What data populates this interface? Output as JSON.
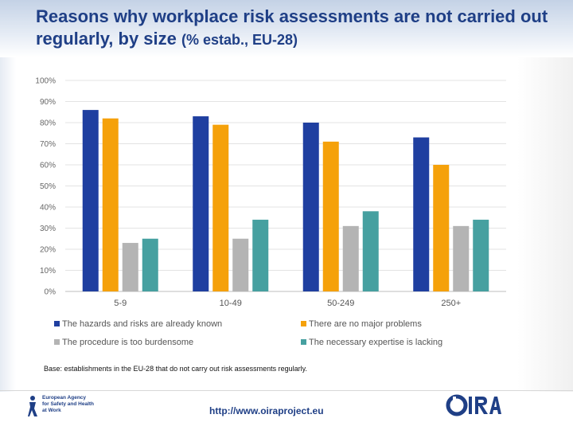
{
  "header": {
    "title_main": "Reasons why workplace risk assessments are not carried out regularly, by size ",
    "title_suffix": "(% estab., EU-28)"
  },
  "chart_data": {
    "type": "bar",
    "categories": [
      "5-9",
      "10-49",
      "50-249",
      "250+"
    ],
    "series": [
      {
        "name": "The hazards and risks are already known",
        "color": "#1f3fa0",
        "values": [
          86,
          83,
          80,
          73
        ]
      },
      {
        "name": "There are no major problems",
        "color": "#f5a10a",
        "values": [
          82,
          79,
          71,
          60
        ]
      },
      {
        "name": "The procedure is too burdensome",
        "color": "#b4b4b4",
        "values": [
          23,
          25,
          31,
          31
        ]
      },
      {
        "name": "The necessary expertise is lacking",
        "color": "#46a0a0",
        "values": [
          25,
          34,
          38,
          34
        ]
      }
    ],
    "yticks": [
      "0%",
      "10%",
      "20%",
      "30%",
      "40%",
      "50%",
      "60%",
      "70%",
      "80%",
      "90%",
      "100%"
    ],
    "ylim": [
      0,
      100
    ],
    "grid": true,
    "legend_position": "bottom",
    "xlabel": "",
    "ylabel": ""
  },
  "note": "Base: establishments in the EU-28 that do not carry out risk assessments regularly.",
  "footer": {
    "agency_lines": [
      "European Agency",
      "for Safety and Health",
      "at Work"
    ],
    "url": "http://www.oiraproject.eu",
    "oira_logo_text": "OiRA"
  }
}
